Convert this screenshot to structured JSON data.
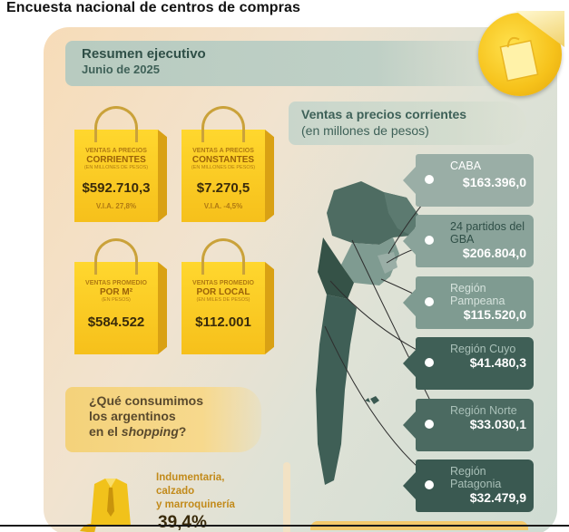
{
  "page_title": "Encuesta nacional de centros de compras",
  "summary": {
    "title": "Resumen ejecutivo",
    "date": "Junio de 2025"
  },
  "kpis": [
    {
      "l1": "VENTAS A PRECIOS",
      "l2": "CORRIENTES",
      "l3": "(EN MILLONES DE PESOS)",
      "value": "$592.710,3",
      "via": "V.I.A. 27,8%"
    },
    {
      "l1": "VENTAS A PRECIOS",
      "l2": "CONSTANTES",
      "l3": "(EN MILLONES DE PESOS)",
      "value": "$7.270,5",
      "via": "V.I.A. -4,5%"
    },
    {
      "l1": "VENTAS PROMEDIO",
      "l2": "POR M²",
      "l3": "(EN PESOS)",
      "value": "$584.522"
    },
    {
      "l1": "VENTAS PROMEDIO",
      "l2": "POR LOCAL",
      "l3": "(EN MILES DE PESOS)",
      "value": "$112.001"
    }
  ],
  "ventas": {
    "title": "Ventas a precios corrientes",
    "subtitle": "(en millones de pesos)"
  },
  "regions": [
    {
      "name": "CABA",
      "value": "$163.396,0",
      "bg": "#9aaea6",
      "text": "#ffffff"
    },
    {
      "name": "24 partidos del GBA",
      "value": "$206.804,0",
      "bg": "#8aa39a",
      "text": "#2f4f47"
    },
    {
      "name": "Región Pampeana",
      "value": "$115.520,0",
      "bg": "#7f9b91",
      "text": "#d5e2dc"
    },
    {
      "name": "Región Cuyo",
      "value": "$41.480,3",
      "bg": "#3f5f56",
      "text": "#a9c0b8"
    },
    {
      "name": "Región Norte",
      "value": "$33.030,1",
      "bg": "#4b6a61",
      "text": "#a9c0b8"
    },
    {
      "name": "Región Patagonia",
      "value": "$32.479,9",
      "bg": "#3a5951",
      "text": "#a9c0b8"
    }
  ],
  "consumo": {
    "line1": "¿Qué consumimos",
    "line2": "los argentinos",
    "line3_pre": "en el ",
    "line3_em": "shopping",
    "line3_post": "?"
  },
  "category": {
    "line1": "Indumentaria,",
    "line2": "calzado",
    "line3": "y marroquinería",
    "percent": "39,4%"
  },
  "icons": {
    "badge": "shopping-bag-icon",
    "shirt": "shirt-tie-icon",
    "map": "argentina-map"
  }
}
